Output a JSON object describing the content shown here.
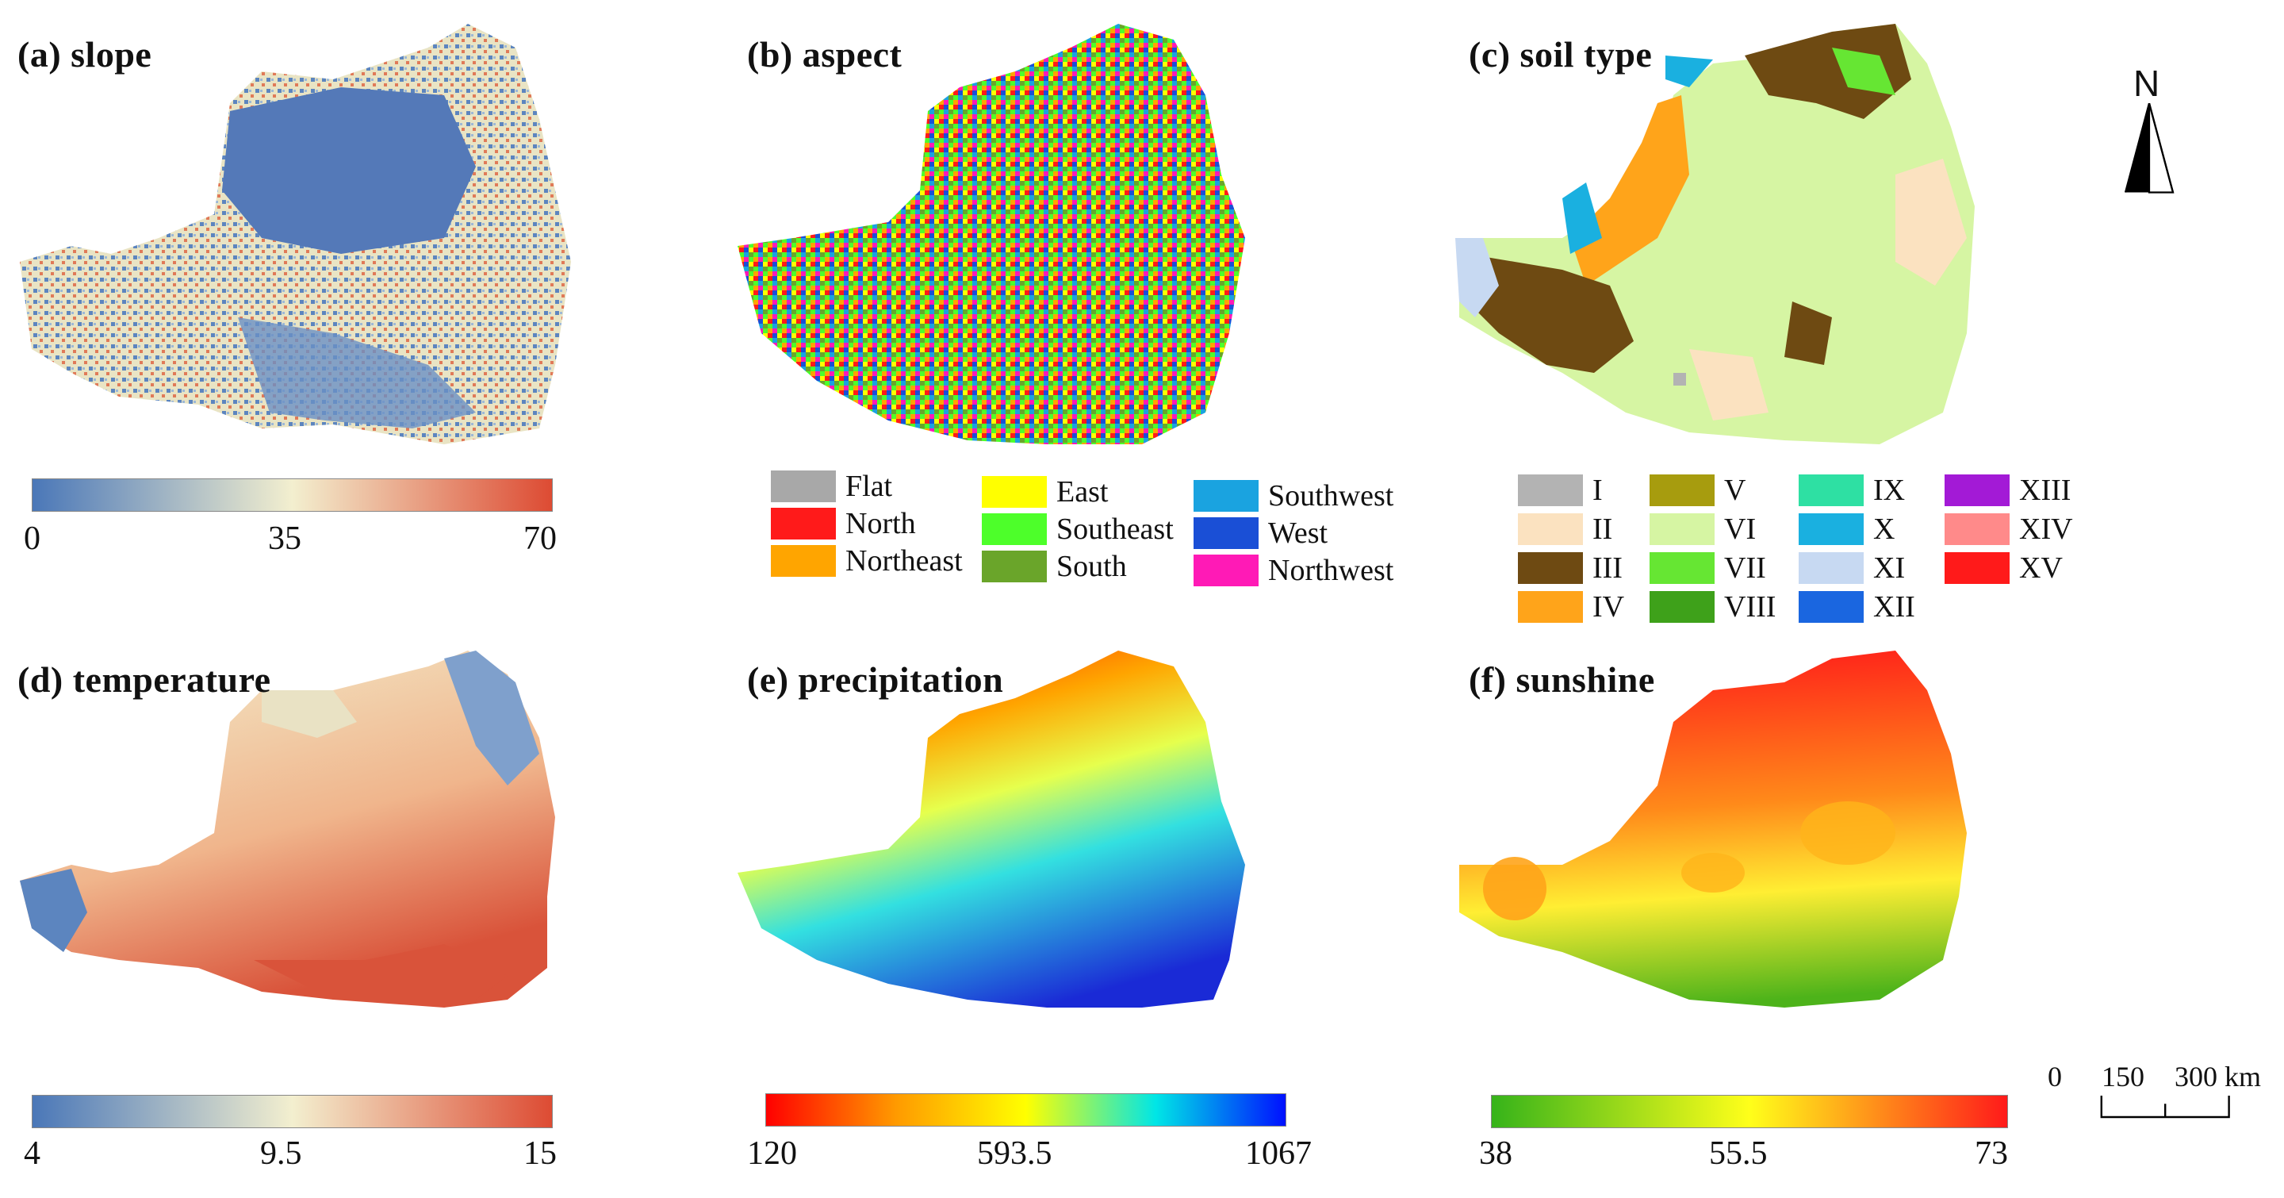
{
  "panels": [
    {
      "id": "a",
      "title": "(a) slope",
      "legend": {
        "type": "colorbar",
        "ticks": [
          "0",
          "35",
          "70"
        ],
        "colors": [
          "#4a77b8",
          "#f3efcf",
          "#dd4b33"
        ]
      }
    },
    {
      "id": "b",
      "title": "(b) aspect",
      "legend": {
        "type": "categorical",
        "items": [
          {
            "label": "Flat",
            "color": "#a8a8a8"
          },
          {
            "label": "North",
            "color": "#ff1a1a"
          },
          {
            "label": "Northeast",
            "color": "#ffa500"
          },
          {
            "label": "East",
            "color": "#ffff00"
          },
          {
            "label": "Southeast",
            "color": "#4dff2a"
          },
          {
            "label": "South",
            "color": "#6aa52a"
          },
          {
            "label": "Southwest",
            "color": "#1aa3e0"
          },
          {
            "label": "West",
            "color": "#1a4fd6"
          },
          {
            "label": "Northwest",
            "color": "#ff1ab6"
          }
        ]
      }
    },
    {
      "id": "c",
      "title": "(c) soil type",
      "legend": {
        "type": "categorical",
        "items": [
          {
            "label": "I",
            "color": "#b3b3b3"
          },
          {
            "label": "II",
            "color": "#fbe2c0"
          },
          {
            "label": "III",
            "color": "#6e4a12"
          },
          {
            "label": "IV",
            "color": "#ffa41a"
          },
          {
            "label": "V",
            "color": "#a79c0e"
          },
          {
            "label": "VI",
            "color": "#d6f5a3"
          },
          {
            "label": "VII",
            "color": "#66e633"
          },
          {
            "label": "VIII",
            "color": "#3ea11a"
          },
          {
            "label": "IX",
            "color": "#2ee0a3"
          },
          {
            "label": "X",
            "color": "#1ab0e0"
          },
          {
            "label": "XI",
            "color": "#c7d9f2"
          },
          {
            "label": "XII",
            "color": "#1a66e0"
          },
          {
            "label": "XIII",
            "color": "#a31ad6"
          },
          {
            "label": "XIV",
            "color": "#ff8a8a"
          },
          {
            "label": "XV",
            "color": "#ff1a1a"
          }
        ]
      }
    },
    {
      "id": "d",
      "title": "(d) temperature",
      "legend": {
        "type": "colorbar",
        "ticks": [
          "4",
          "9.5",
          "15"
        ],
        "colors": [
          "#4a77b8",
          "#f3efcf",
          "#dd4b33"
        ]
      }
    },
    {
      "id": "e",
      "title": "(e) precipitation",
      "legend": {
        "type": "colorbar",
        "ticks": [
          "120",
          "593.5",
          "1067"
        ],
        "colors": [
          "#ff0000",
          "#ff9a00",
          "#ffff00",
          "#00e6e6",
          "#0010ff"
        ]
      }
    },
    {
      "id": "f",
      "title": "(f) sunshine",
      "legend": {
        "type": "colorbar",
        "ticks": [
          "38",
          "55.5",
          "73"
        ],
        "colors": [
          "#36b31a",
          "#ffff1a",
          "#ff1a1a"
        ]
      }
    }
  ],
  "north_arrow": {
    "label": "N"
  },
  "scale_bar": {
    "ticks": [
      "0",
      "150",
      "300 km"
    ]
  }
}
